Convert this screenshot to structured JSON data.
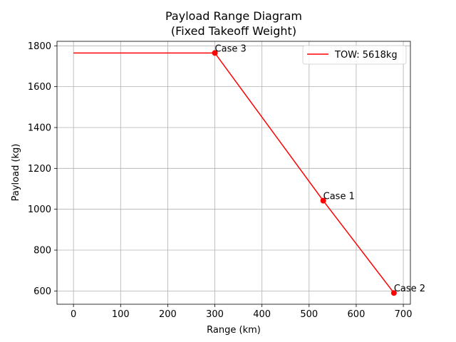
{
  "chart_data": {
    "type": "line",
    "title": [
      "Payload Range Diagram",
      "(Fixed Takeoff Weight)"
    ],
    "xlabel": "Range (km)",
    "ylabel": "Payload (kg)",
    "xlim": [
      -35,
      715
    ],
    "ylim": [
      535,
      1822
    ],
    "xticks": [
      0,
      100,
      200,
      300,
      400,
      500,
      600,
      700
    ],
    "yticks": [
      600,
      800,
      1000,
      1200,
      1400,
      1600,
      1800
    ],
    "grid": true,
    "legend": {
      "location": "upper right"
    },
    "series": [
      {
        "name": "TOW: 5618kg",
        "color": "#ff0000",
        "x": [
          0,
          300,
          530,
          680
        ],
        "y": [
          1765,
          1765,
          1042,
          590
        ]
      }
    ],
    "points": [
      {
        "label": "Case 1",
        "x": 530,
        "y": 1042,
        "color": "#ff0000"
      },
      {
        "label": "Case 2",
        "x": 680,
        "y": 590,
        "color": "#ff0000"
      },
      {
        "label": "Case 3",
        "x": 300,
        "y": 1765,
        "color": "#ff0000"
      }
    ]
  }
}
